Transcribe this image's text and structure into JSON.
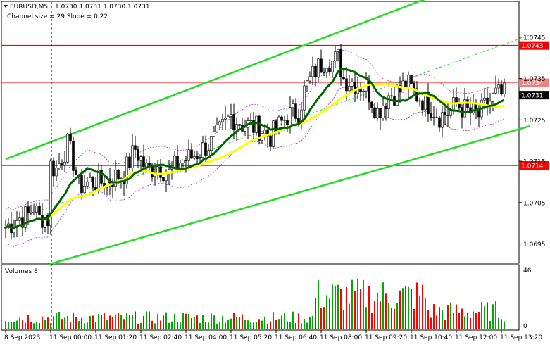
{
  "chart_data": {
    "type": "candlestick",
    "header": {
      "symbol": "EURUSD,M5",
      "ohlc": "1.0730 1.0731 1.0730 1.0731",
      "channel_info": "Channel size = 29 Slope = 0.22"
    },
    "price_axis": {
      "ylim": [
        1.06905,
        1.07535
      ],
      "ticks": [
        "1.0745",
        "1.0735",
        "1.0725",
        "1.0715",
        "1.0705",
        "1.0695"
      ],
      "tick_values": [
        1.0745,
        1.0735,
        1.0725,
        1.0715,
        1.0705,
        1.0695
      ]
    },
    "time_axis": {
      "labels": [
        "8 Sep 2023",
        "11 Sep 00:00",
        "11 Sep 01:20",
        "11 Sep 02:40",
        "11 Sep 04:00",
        "11 Sep 05:20",
        "11 Sep 06:40",
        "11 Sep 08:00",
        "11 Sep 09:20",
        "11 Sep 10:40",
        "11 Sep 12:00",
        "11 Sep 13:20"
      ],
      "label_bars": [
        0,
        16,
        32,
        48,
        64,
        80,
        96,
        112,
        128,
        144,
        160,
        176
      ]
    },
    "levels": [
      {
        "price": 1.0743,
        "label": "1.0743",
        "color": "#ff0000",
        "style": "solid"
      },
      {
        "price": 1.0734,
        "label": "1.0734",
        "color": "#f08080",
        "style": "solid"
      },
      {
        "price": 1.0714,
        "label": "1.0714",
        "color": "#ff0000",
        "style": "solid"
      }
    ],
    "current_price": {
      "price": 1.0731,
      "label": "1.0731"
    },
    "channel": {
      "color": "#22dd22",
      "upper": [
        [
          0,
          1.07155
        ],
        [
          150,
          1.07545
        ]
      ],
      "lower": [
        [
          15,
          1.069
        ],
        [
          186,
          1.07235
        ]
      ],
      "mid_dashed": [
        [
          10,
          1.07025
        ],
        [
          186,
          1.07455
        ]
      ]
    },
    "volumes": {
      "title": "Volumes 8",
      "axis_max_label": "46",
      "axis_min_label": "0",
      "max": 46
    },
    "session_separator_bar": 16,
    "bars_count": 178,
    "colors": {
      "up": "#00aa00",
      "down": "#ff0000",
      "ma_fast": "#006400",
      "ma_slow": "#ffff00",
      "envelope": "#9932cc",
      "current_price_bg": "#000000"
    }
  }
}
